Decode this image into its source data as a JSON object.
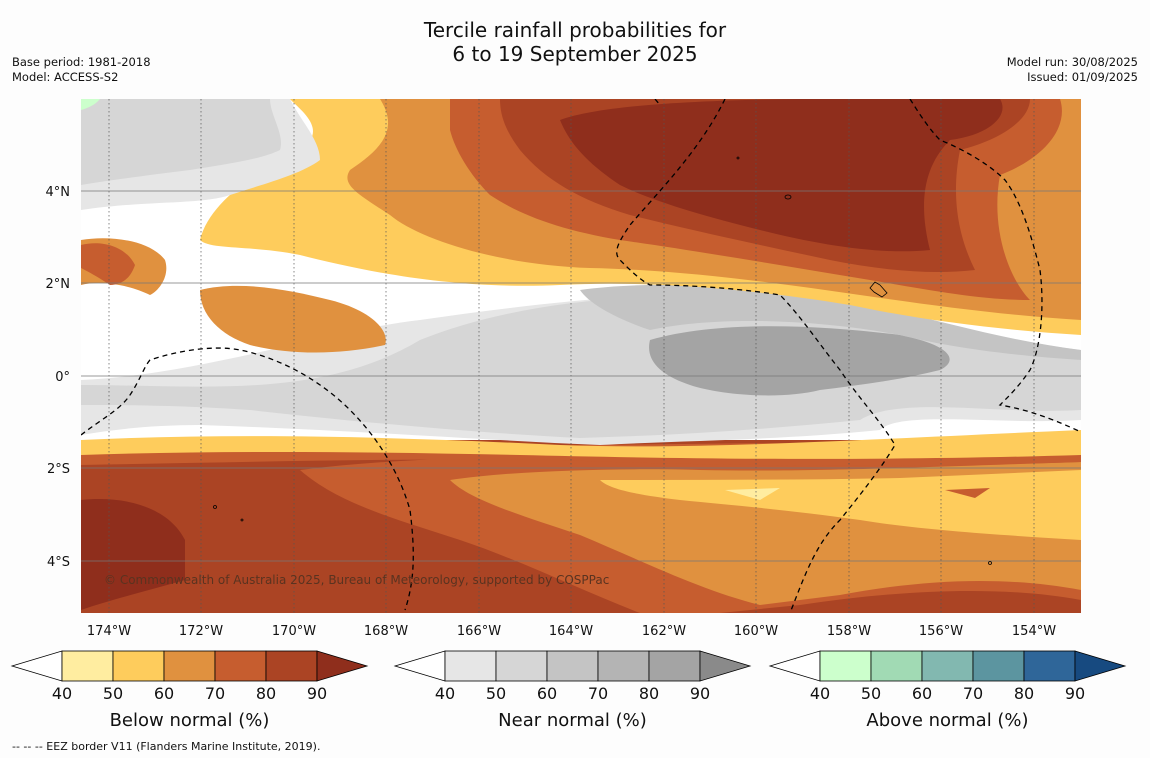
{
  "title": {
    "line1": "Tercile rainfall probabilities for",
    "line2": "6 to 19 September 2025"
  },
  "meta_left": {
    "base_period": "Base period: 1981-2018",
    "model": "Model: ACCESS-S2"
  },
  "meta_right": {
    "model_run": "Model run: 30/08/2025",
    "issued": "Issued: 01/09/2025"
  },
  "map": {
    "lon_labels": [
      "174°W",
      "172°W",
      "170°W",
      "168°W",
      "166°W",
      "164°W",
      "162°W",
      "160°W",
      "158°W",
      "156°W",
      "154°W"
    ],
    "lat_labels": [
      "4°N",
      "2°N",
      "0°",
      "2°S",
      "4°S"
    ],
    "copyright": "© Commonwealth of Australia 2025, Bureau of Meteorology, supported by COSPPac"
  },
  "colorbars": [
    {
      "title": "Below normal (%)",
      "ticks": [
        "40",
        "50",
        "60",
        "70",
        "80",
        "90"
      ],
      "colors": [
        "#ffffff",
        "#ffeda0",
        "#fecc5c",
        "#e0913f",
        "#c65d2f",
        "#ab4424",
        "#8f2e1c"
      ]
    },
    {
      "title": "Near normal (%)",
      "ticks": [
        "40",
        "50",
        "60",
        "70",
        "80",
        "90"
      ],
      "colors": [
        "#ffffff",
        "#e6e6e6",
        "#d6d6d6",
        "#c4c4c4",
        "#b4b4b4",
        "#a4a4a4",
        "#8a8a8a"
      ]
    },
    {
      "title": "Above normal (%)",
      "ticks": [
        "40",
        "50",
        "60",
        "70",
        "80",
        "90"
      ],
      "colors": [
        "#ffffff",
        "#ccffcc",
        "#a1dab4",
        "#82b8b0",
        "#5c95a0",
        "#2f6699",
        "#174a80"
      ]
    }
  ],
  "footer": "--  --  -- EEZ border V11 (Flanders Marine Institute, 2019)."
}
